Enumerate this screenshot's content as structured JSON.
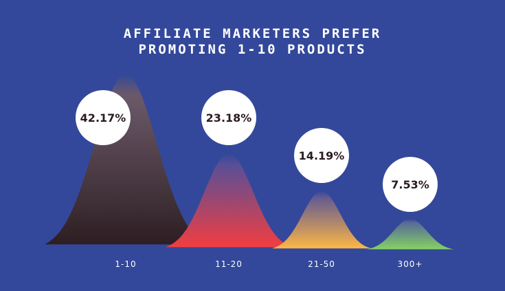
{
  "chart_data": {
    "type": "area",
    "title_lines": [
      "AFFILIATE MARKETERS PREFER",
      "PROMOTING 1-10 PRODUCTS"
    ],
    "categories": [
      "1-10",
      "11-20",
      "21-50",
      "300+"
    ],
    "values": [
      42.17,
      23.18,
      14.19,
      7.53
    ],
    "value_labels": [
      "42.17%",
      "23.18%",
      "14.19%",
      "7.53%"
    ],
    "colors": {
      "background": "#33489a",
      "peak_tops": [
        "#6e5a66",
        "#5c4f96",
        "#6a5d90",
        "#5b6c98"
      ],
      "peak_bottoms": [
        "#2d1e22",
        "#f23e40",
        "#fdb745",
        "#84d263"
      ]
    },
    "legend": "none",
    "grid": false
  }
}
